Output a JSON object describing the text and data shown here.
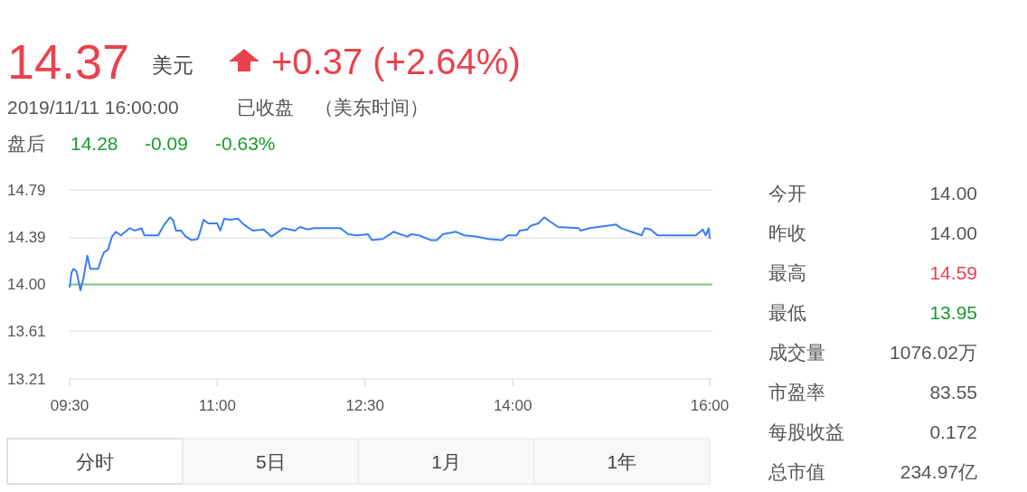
{
  "chart_data": [
    {
      "type": "line",
      "annotations": [
        "14.37",
        "美元",
        "+0.37 (+2.64%)",
        "2019/11/11 16:00:00",
        "已收盘",
        "（美东时间）",
        "盘后",
        "14.28",
        "-0.09",
        "-0.63%",
        "分时",
        "5日",
        "1月",
        "1年"
      ],
      "x": [
        9.5,
        9.52,
        9.54,
        9.57,
        9.61,
        9.64,
        9.68,
        9.71,
        9.79,
        9.82,
        9.85,
        9.89,
        9.93,
        9.97,
        10.02,
        10.11,
        10.16,
        10.23,
        10.26,
        10.4,
        10.46,
        10.52,
        10.55,
        10.58,
        10.63,
        10.68,
        10.74,
        10.8,
        10.81,
        10.86,
        10.91,
        11.0,
        11.03,
        11.07,
        11.13,
        11.21,
        11.27,
        11.36,
        11.47,
        11.55,
        11.67,
        11.79,
        11.84,
        11.92,
        11.98,
        12.25,
        12.33,
        12.42,
        12.53,
        12.57,
        12.68,
        12.79,
        12.86,
        12.93,
        12.97,
        13.05,
        13.17,
        13.23,
        13.29,
        13.42,
        13.51,
        13.63,
        13.75,
        13.89,
        13.95,
        14.04,
        14.07,
        14.15,
        14.18,
        14.26,
        14.32,
        14.39,
        14.46,
        14.67,
        14.69,
        14.78,
        15.05,
        15.1,
        15.31,
        15.34,
        15.4,
        15.47,
        15.86,
        15.93,
        15.96,
        15.99,
        16.0
      ],
      "series": [
        {
          "color": "#3a7ff0",
          "values": [
            13.98,
            14.1,
            14.13,
            14.11,
            13.95,
            14.05,
            14.24,
            14.13,
            14.13,
            14.21,
            14.27,
            14.29,
            14.4,
            14.44,
            14.41,
            14.47,
            14.45,
            14.47,
            14.41,
            14.41,
            14.5,
            14.56,
            14.54,
            14.45,
            14.45,
            14.4,
            14.37,
            14.38,
            14.4,
            14.54,
            14.51,
            14.51,
            14.45,
            14.55,
            14.54,
            14.55,
            14.5,
            14.45,
            14.46,
            14.4,
            14.47,
            14.45,
            14.48,
            14.46,
            14.47,
            14.47,
            14.42,
            14.41,
            14.42,
            14.37,
            14.38,
            14.44,
            14.42,
            14.4,
            14.42,
            14.41,
            14.37,
            14.37,
            14.42,
            14.44,
            14.41,
            14.4,
            14.38,
            14.37,
            14.41,
            14.41,
            14.45,
            14.46,
            14.49,
            14.51,
            14.56,
            14.52,
            14.48,
            14.47,
            14.45,
            14.47,
            14.5,
            14.47,
            14.41,
            14.47,
            14.46,
            14.41,
            14.41,
            14.46,
            14.41,
            14.47,
            14.39
          ]
        }
      ],
      "xlim": [
        9.5,
        16
      ],
      "ylim": [
        13.21,
        14.79
      ],
      "xticks": [
        {
          "value": 9.5,
          "label": "09:30"
        },
        {
          "value": 11,
          "label": "11:00"
        },
        {
          "value": 12.5,
          "label": "12:30"
        },
        {
          "value": 14,
          "label": "14:00"
        },
        {
          "value": 16,
          "label": "16:00"
        }
      ],
      "yticks": [
        {
          "value": 13.21,
          "label": "13.21"
        },
        {
          "value": 13.61,
          "label": "13.61"
        },
        {
          "value": 14.0,
          "label": "14.00"
        },
        {
          "value": 14.39,
          "label": "14.39"
        },
        {
          "value": 14.79,
          "label": "14.79"
        }
      ],
      "grid": "y",
      "ref_lines": [
        {
          "axis": "y",
          "value": 14.0,
          "color": "#7cc683"
        }
      ]
    },
    {
      "type": "other",
      "categories": [
        "今开",
        "昨收",
        "最高",
        "最低",
        "成交量",
        "市盈率",
        "每股收益",
        "总市值"
      ],
      "value_labels": [
        "14.00",
        "14.00",
        "14.59",
        "13.95",
        "1076.02万",
        "83.55",
        "0.172",
        "234.97亿"
      ],
      "colors": [
        "#555555",
        "#555555",
        "#e8424f",
        "#1a9b2e",
        "#555555",
        "#555555",
        "#555555",
        "#555555"
      ]
    }
  ]
}
